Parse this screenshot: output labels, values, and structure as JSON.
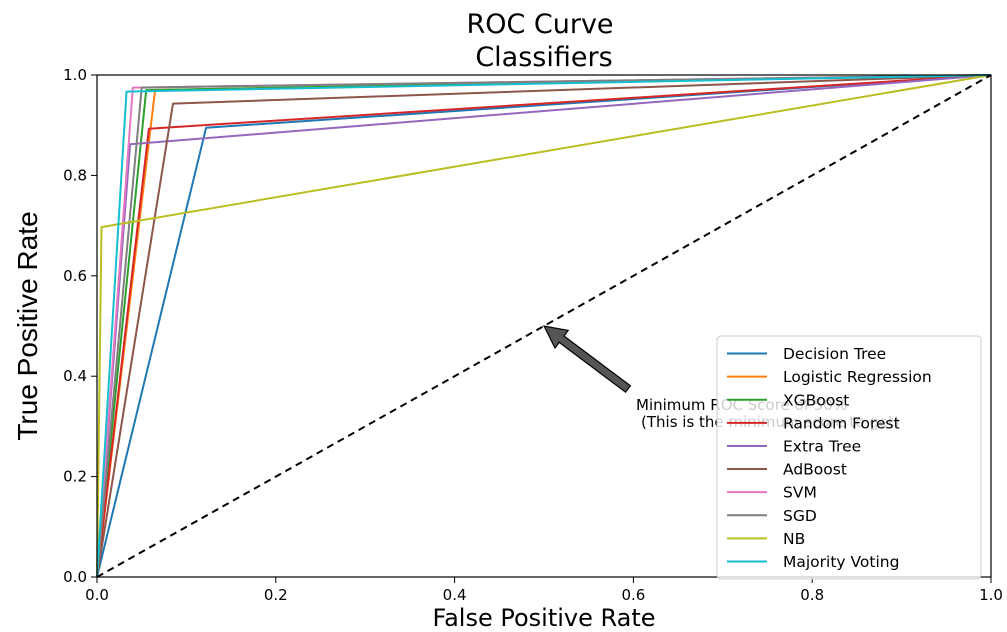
{
  "chart_data": {
    "type": "line",
    "title": "ROC Curve\n Classifiers",
    "xlabel": "False Positive Rate",
    "ylabel": "True Positive Rate",
    "xlim": [
      0.0,
      1.0
    ],
    "ylim": [
      0.0,
      1.0
    ],
    "xticks": [
      "0.0",
      "0.2",
      "0.4",
      "0.6",
      "0.8",
      "1.0"
    ],
    "yticks": [
      "0.0",
      "0.2",
      "0.4",
      "0.6",
      "0.8",
      "1.0"
    ],
    "grid": false,
    "legend_position": "lower right",
    "series": [
      {
        "name": "Decision Tree",
        "color": "#1f77b4",
        "x": [
          0,
          0.122,
          1
        ],
        "y": [
          0,
          0.895,
          1
        ]
      },
      {
        "name": "Logistic Regression",
        "color": "#ff7f0e",
        "x": [
          0,
          0.065,
          1
        ],
        "y": [
          0,
          0.97,
          1
        ]
      },
      {
        "name": "XGBoost",
        "color": "#2ca02c",
        "x": [
          0,
          0.055,
          1
        ],
        "y": [
          0,
          0.97,
          1
        ]
      },
      {
        "name": "Random Forest",
        "color": "#d62728",
        "x": [
          0,
          0.058,
          1
        ],
        "y": [
          0,
          0.893,
          1
        ]
      },
      {
        "name": "Extra Tree",
        "color": "#9467bd",
        "x": [
          0,
          0.037,
          1
        ],
        "y": [
          0,
          0.862,
          1
        ]
      },
      {
        "name": "AdBoost",
        "color": "#8c564b",
        "x": [
          0,
          0.085,
          1
        ],
        "y": [
          0,
          0.943,
          1
        ]
      },
      {
        "name": "SVM",
        "color": "#e377c2",
        "x": [
          0,
          0.04,
          1
        ],
        "y": [
          0,
          0.975,
          1
        ]
      },
      {
        "name": "SGD",
        "color": "#7f7f7f",
        "x": [
          0,
          0.05,
          1
        ],
        "y": [
          0,
          0.975,
          1
        ]
      },
      {
        "name": "NB",
        "color": "#bcbd22",
        "x": [
          0,
          0.005,
          1
        ],
        "y": [
          0,
          0.697,
          1
        ]
      },
      {
        "name": "Majority Voting",
        "color": "#17becf",
        "x": [
          0,
          0.033,
          1
        ],
        "y": [
          0,
          0.967,
          1
        ]
      }
    ],
    "baseline": {
      "x": [
        0,
        1
      ],
      "y": [
        0,
        1
      ],
      "style": "dashed",
      "color": "#000000"
    },
    "annotation": {
      "text_line1": "Minimum ROC Score of 50%",
      "text_line2": "(This is the minimum score to get)",
      "arrow_to": [
        0.5,
        0.5
      ],
      "text_at": [
        0.6,
        0.35
      ]
    }
  }
}
